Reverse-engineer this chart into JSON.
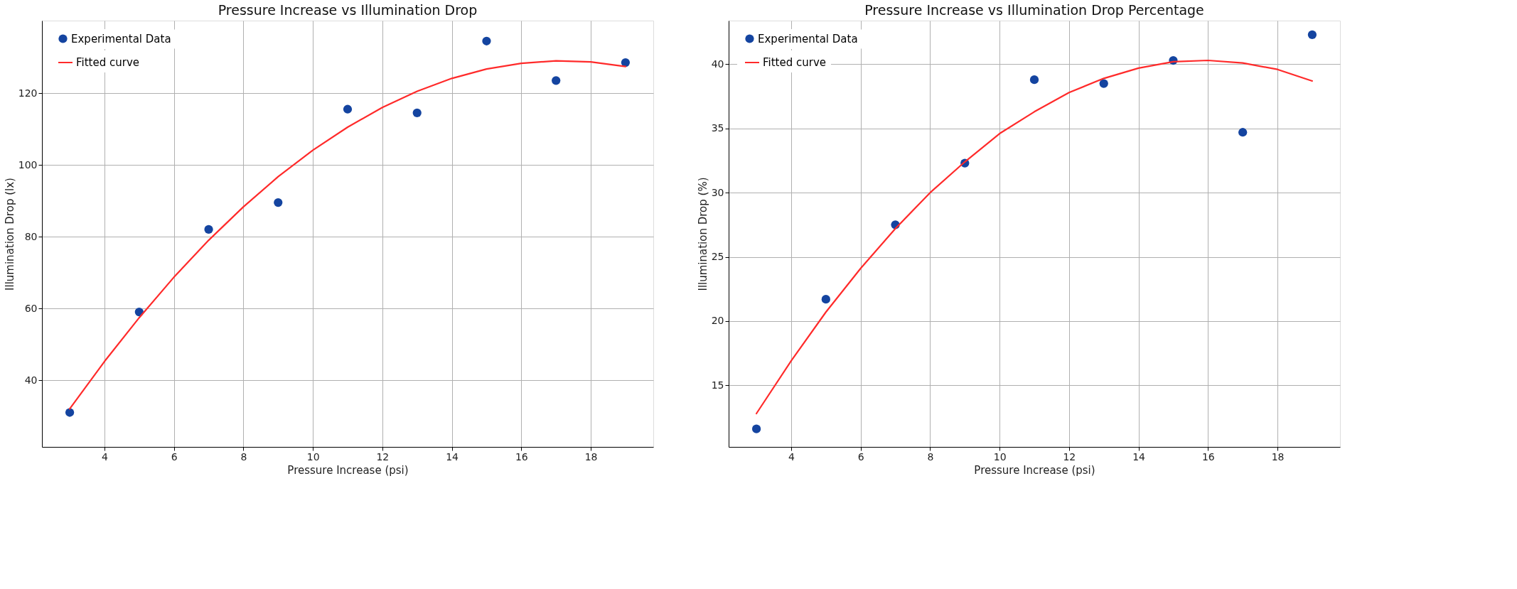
{
  "chart_data": [
    {
      "type": "scatter",
      "title": "Pressure Increase vs Illumination Drop",
      "xlabel": "Pressure Increase (psi)",
      "ylabel": "Illumination Drop (lx)",
      "xlim": [
        2.2,
        19.8
      ],
      "ylim": [
        21.4,
        140.2
      ],
      "xticks": [
        4,
        6,
        8,
        10,
        12,
        14,
        16,
        18
      ],
      "yticks": [
        40,
        60,
        80,
        100,
        120
      ],
      "grid": true,
      "legend": "top left",
      "series": [
        {
          "name": "Experimental Data",
          "marker": "circle",
          "color": "#1444a0",
          "x": [
            3,
            5,
            7,
            9,
            11,
            13,
            15,
            17,
            19
          ],
          "values": [
            31,
            59,
            82,
            89.5,
            115.5,
            114.5,
            134.5,
            123.5,
            128.5
          ]
        },
        {
          "name": "Fitted curve",
          "type": "line",
          "color": "#ff2a2a",
          "x": [
            3,
            4,
            5,
            6,
            7,
            8,
            9,
            10,
            11,
            12,
            13,
            14,
            15,
            16,
            17,
            18,
            19
          ],
          "values": [
            32,
            45.2,
            57.4,
            68.7,
            79,
            88.3,
            96.7,
            104.1,
            110.5,
            116,
            120.5,
            124.1,
            126.7,
            128.3,
            129,
            128.7,
            127.4
          ]
        }
      ]
    },
    {
      "type": "scatter",
      "title": "Pressure Increase vs Illumination Drop Percentage",
      "xlabel": "Pressure Increase (psi)",
      "ylabel": "Illumination Drop (%)",
      "xlim": [
        2.2,
        19.8
      ],
      "ylim": [
        10.2,
        43.4
      ],
      "xticks": [
        4,
        6,
        8,
        10,
        12,
        14,
        16,
        18
      ],
      "yticks": [
        15,
        20,
        25,
        30,
        35,
        40
      ],
      "grid": true,
      "legend": "top left",
      "series": [
        {
          "name": "Experimental Data",
          "marker": "circle",
          "color": "#1444a0",
          "x": [
            3,
            5,
            7,
            9,
            11,
            13,
            15,
            17,
            19
          ],
          "values": [
            11.6,
            21.7,
            27.5,
            32.3,
            38.8,
            38.5,
            40.3,
            34.7,
            42.3
          ]
        },
        {
          "name": "Fitted curve",
          "type": "line",
          "color": "#ff2a2a",
          "x": [
            3,
            4,
            5,
            6,
            7,
            8,
            9,
            10,
            11,
            12,
            13,
            14,
            15,
            16,
            17,
            18,
            19
          ],
          "values": [
            12.8,
            16.9,
            20.7,
            24.1,
            27.2,
            30,
            32.4,
            34.6,
            36.3,
            37.8,
            38.9,
            39.7,
            40.2,
            40.3,
            40.1,
            39.6,
            38.7
          ]
        }
      ]
    }
  ]
}
